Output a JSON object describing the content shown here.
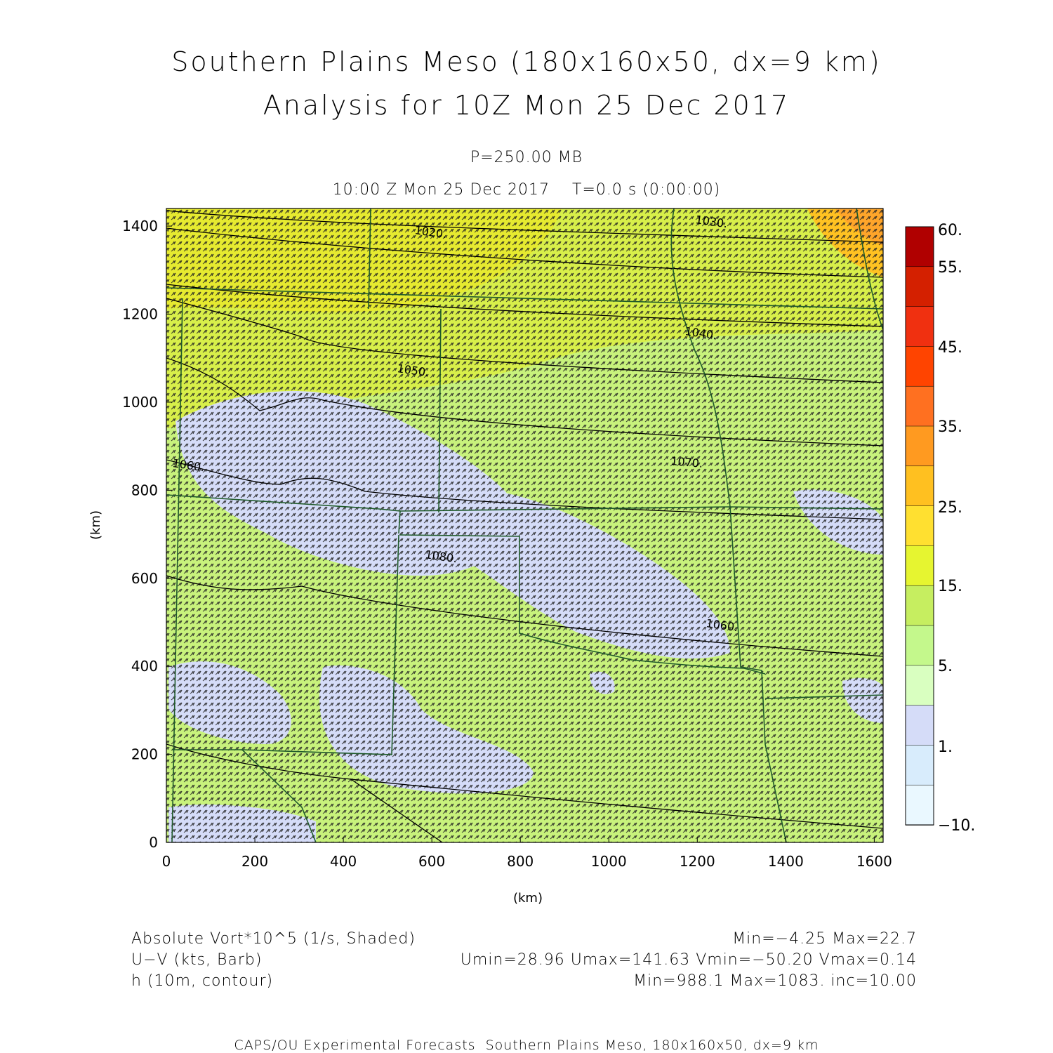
{
  "title": {
    "line1": "Southern Plains Meso (180x160x50, dx=9 km)",
    "line2": "Analysis for 10Z Mon 25 Dec 2017"
  },
  "subtitle": {
    "level": "P=250.00 MB",
    "time": "10:00 Z Mon 25 Dec 2017    T=0.0 s (0:00:00)"
  },
  "axes": {
    "x_unit": "(km)",
    "y_unit": "(km)",
    "x_ticks": [
      "0",
      "200",
      "400",
      "600",
      "800",
      "1000",
      "1200",
      "1400",
      "1600"
    ],
    "y_ticks": [
      "0",
      "200",
      "400",
      "600",
      "800",
      "1000",
      "1200",
      "1400"
    ],
    "x_range": [
      0,
      1620
    ],
    "y_range": [
      0,
      1440
    ]
  },
  "colorbar": {
    "labels": [
      "60.",
      "55.",
      "45.",
      "35.",
      "25.",
      "15.",
      "5.",
      "1.",
      "−10."
    ],
    "colors": [
      "#b00000",
      "#d42000",
      "#f03010",
      "#ff4400",
      "#ff7020",
      "#ff9a20",
      "#ffc020",
      "#ffe030",
      "#e6f530",
      "#c6ee60",
      "#c4f88c",
      "#d9ffc0",
      "#d5dcf8",
      "#d8ecfc",
      "#eaf8ff"
    ]
  },
  "contour_labels": [
    "1020.",
    "1030.",
    "1040.",
    "1050.",
    "1060.",
    "1070.",
    "1080.",
    "1060."
  ],
  "legend": {
    "field1": "Absolute Vort*10^5 (1/s, Shaded)",
    "field1_stats": "Min=−4.25 Max=22.7",
    "field2": "U−V (kts, Barb)",
    "field2_stats": "Umin=28.96 Umax=141.63 Vmin=−50.20 Vmax=0.14",
    "field3": "h (10m, contour)",
    "field3_stats": "Min=988.1 Max=1083. inc=10.00"
  },
  "credit": "CAPS/OU Experimental Forecasts  Southern Plains Meso, 180x160x50, dx=9 km"
}
